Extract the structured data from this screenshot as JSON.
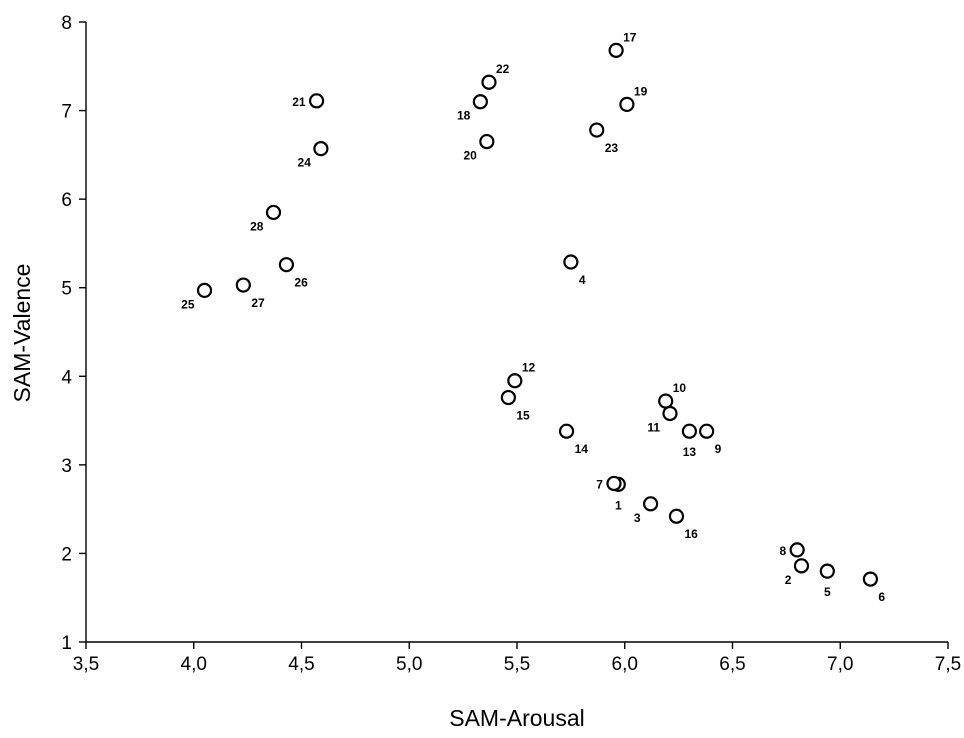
{
  "chart_data": {
    "type": "scatter",
    "xlabel": "SAM-Arousal",
    "ylabel": "SAM-Valence",
    "xlim": [
      3.5,
      7.5
    ],
    "ylim": [
      1,
      8
    ],
    "x_ticks": [
      "3,5",
      "4,0",
      "4,5",
      "5,0",
      "5,5",
      "6,0",
      "6,5",
      "7,0",
      "7,5"
    ],
    "y_ticks": [
      "1",
      "2",
      "3",
      "4",
      "5",
      "6",
      "7",
      "8"
    ],
    "grid": false,
    "points": [
      {
        "label": "1",
        "x": 5.97,
        "y": 2.78,
        "label_pos": "below"
      },
      {
        "label": "2",
        "x": 6.82,
        "y": 1.86,
        "label_pos": "below-left"
      },
      {
        "label": "3",
        "x": 6.12,
        "y": 2.56,
        "label_pos": "below-left"
      },
      {
        "label": "4",
        "x": 5.75,
        "y": 5.29,
        "label_pos": "below-right"
      },
      {
        "label": "5",
        "x": 6.94,
        "y": 1.8,
        "label_pos": "below"
      },
      {
        "label": "6",
        "x": 7.14,
        "y": 1.71,
        "label_pos": "below-right"
      },
      {
        "label": "7",
        "x": 5.95,
        "y": 2.79,
        "label_pos": "left"
      },
      {
        "label": "8",
        "x": 6.8,
        "y": 2.04,
        "label_pos": "left"
      },
      {
        "label": "9",
        "x": 6.38,
        "y": 3.38,
        "label_pos": "below-right"
      },
      {
        "label": "10",
        "x": 6.19,
        "y": 3.72,
        "label_pos": "above-right"
      },
      {
        "label": "11",
        "x": 6.21,
        "y": 3.58,
        "label_pos": "below-left"
      },
      {
        "label": "12",
        "x": 5.49,
        "y": 3.95,
        "label_pos": "above-right"
      },
      {
        "label": "13",
        "x": 6.3,
        "y": 3.38,
        "label_pos": "below"
      },
      {
        "label": "14",
        "x": 5.73,
        "y": 3.38,
        "label_pos": "below-right"
      },
      {
        "label": "15",
        "x": 5.46,
        "y": 3.76,
        "label_pos": "below-right"
      },
      {
        "label": "16",
        "x": 6.24,
        "y": 2.42,
        "label_pos": "below-right"
      },
      {
        "label": "17",
        "x": 5.96,
        "y": 7.68,
        "label_pos": "above-right"
      },
      {
        "label": "18",
        "x": 5.33,
        "y": 7.1,
        "label_pos": "below-left"
      },
      {
        "label": "19",
        "x": 6.01,
        "y": 7.07,
        "label_pos": "above-right"
      },
      {
        "label": "20",
        "x": 5.36,
        "y": 6.65,
        "label_pos": "below-left"
      },
      {
        "label": "21",
        "x": 4.57,
        "y": 7.11,
        "label_pos": "left"
      },
      {
        "label": "22",
        "x": 5.37,
        "y": 7.32,
        "label_pos": "above-right"
      },
      {
        "label": "23",
        "x": 5.87,
        "y": 6.78,
        "label_pos": "below-right"
      },
      {
        "label": "24",
        "x": 4.59,
        "y": 6.57,
        "label_pos": "below-left"
      },
      {
        "label": "25",
        "x": 4.05,
        "y": 4.97,
        "label_pos": "below-left"
      },
      {
        "label": "26",
        "x": 4.43,
        "y": 5.26,
        "label_pos": "below-right"
      },
      {
        "label": "27",
        "x": 4.23,
        "y": 5.03,
        "label_pos": "below-right"
      },
      {
        "label": "28",
        "x": 4.37,
        "y": 5.85,
        "label_pos": "below-left"
      }
    ]
  }
}
